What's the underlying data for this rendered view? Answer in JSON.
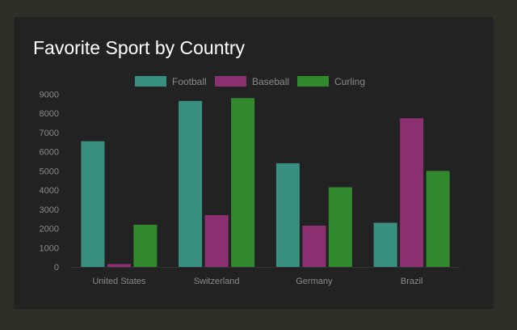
{
  "chart_data": {
    "type": "bar",
    "title": "Favorite Sport by Country",
    "categories": [
      "United States",
      "Switzerland",
      "Germany",
      "Brazil"
    ],
    "series": [
      {
        "name": "Football",
        "values": [
          6550,
          8650,
          5400,
          2300
        ],
        "color": "#3a9080"
      },
      {
        "name": "Baseball",
        "values": [
          150,
          2700,
          2150,
          7750
        ],
        "color": "#8b3171"
      },
      {
        "name": "Curling",
        "values": [
          2200,
          8800,
          4150,
          5000
        ],
        "color": "#338a2e"
      }
    ],
    "ylim": [
      0,
      9000
    ],
    "yticks": [
      0,
      1000,
      2000,
      3000,
      4000,
      5000,
      6000,
      7000,
      8000,
      9000
    ],
    "legend_position": "top",
    "legend_color": "#8a8a8a",
    "grid": false
  }
}
